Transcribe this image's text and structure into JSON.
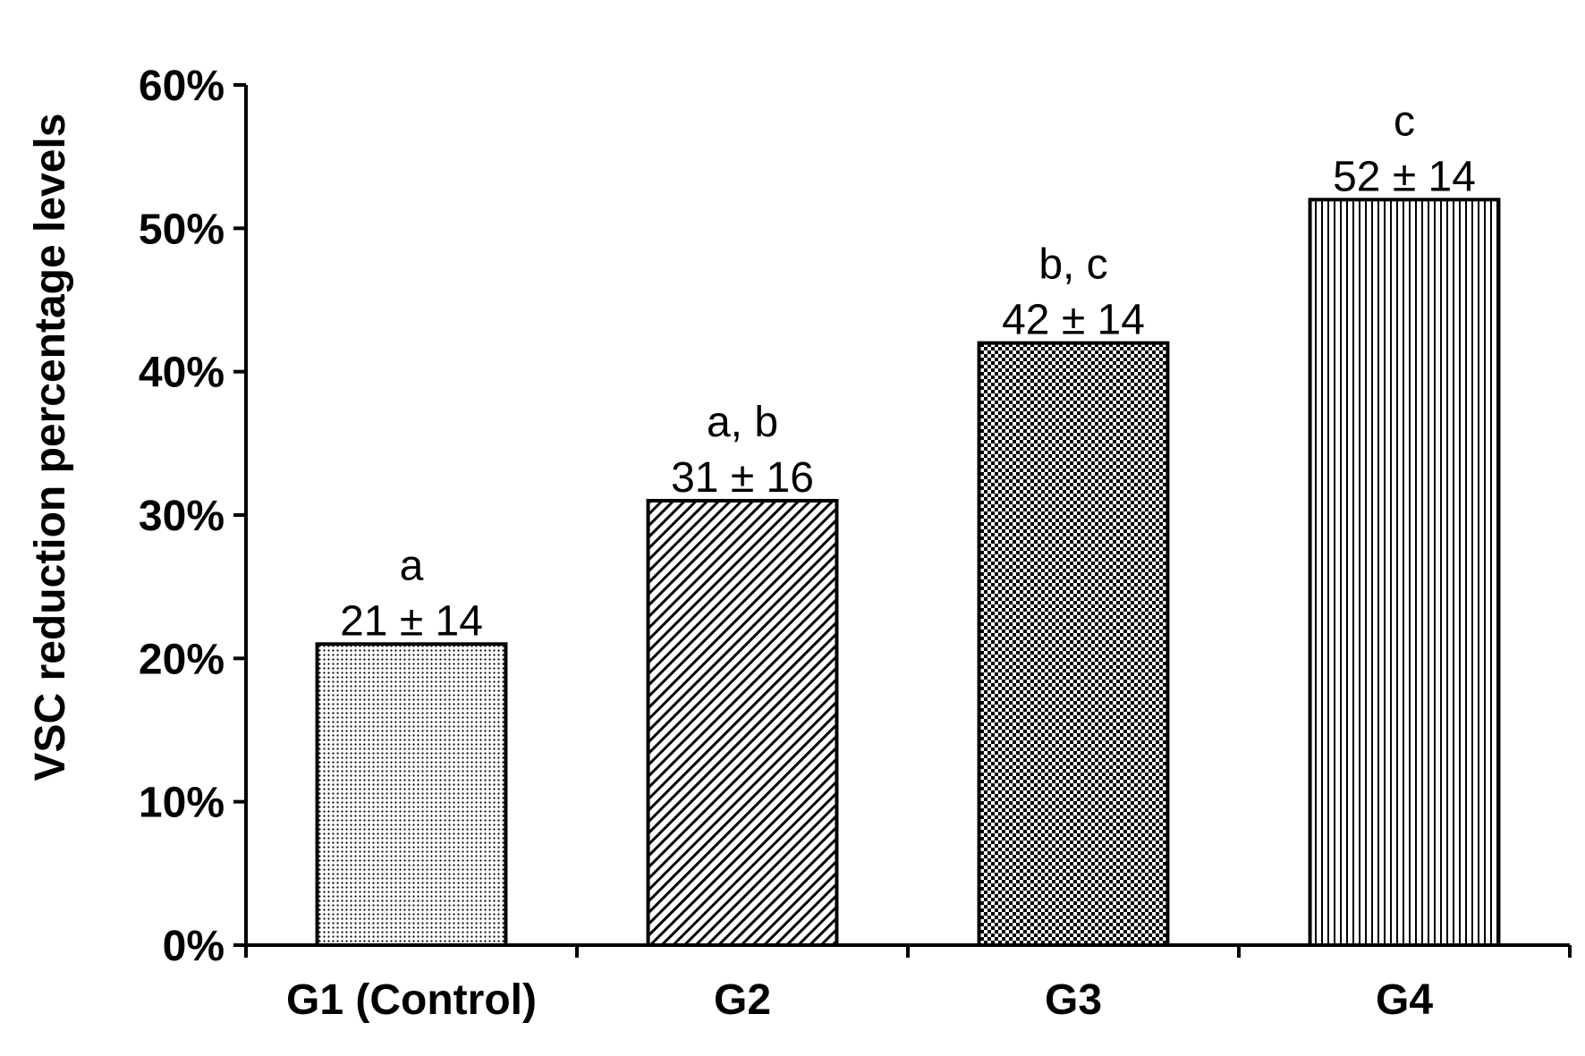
{
  "chart_data": {
    "type": "bar",
    "title": "",
    "xlabel": "",
    "ylabel": "VSC reduction percentage  levels",
    "ylim": [
      0,
      60
    ],
    "yticks": [
      0,
      10,
      20,
      30,
      40,
      50,
      60
    ],
    "ytick_labels": [
      "0%",
      "10%",
      "20%",
      "30%",
      "40%",
      "50%",
      "60%"
    ],
    "grid": false,
    "legend": "none",
    "categories": [
      "G1 (Control)",
      "G2",
      "G3",
      "G4"
    ],
    "values": [
      21,
      31,
      42,
      52
    ],
    "value_labels": [
      "21 ± 14",
      "31 ± 16",
      "42 ± 14",
      "52 ± 14"
    ],
    "significance_letters": [
      "a",
      "a, b",
      "b, c",
      "c"
    ],
    "patterns": [
      "dots",
      "diagonal-stripes",
      "checkerboard",
      "vertical-stripes"
    ],
    "colors": {
      "bar_fill": "#ffffff",
      "bar_pattern": "#000000",
      "axis": "#000000"
    }
  }
}
